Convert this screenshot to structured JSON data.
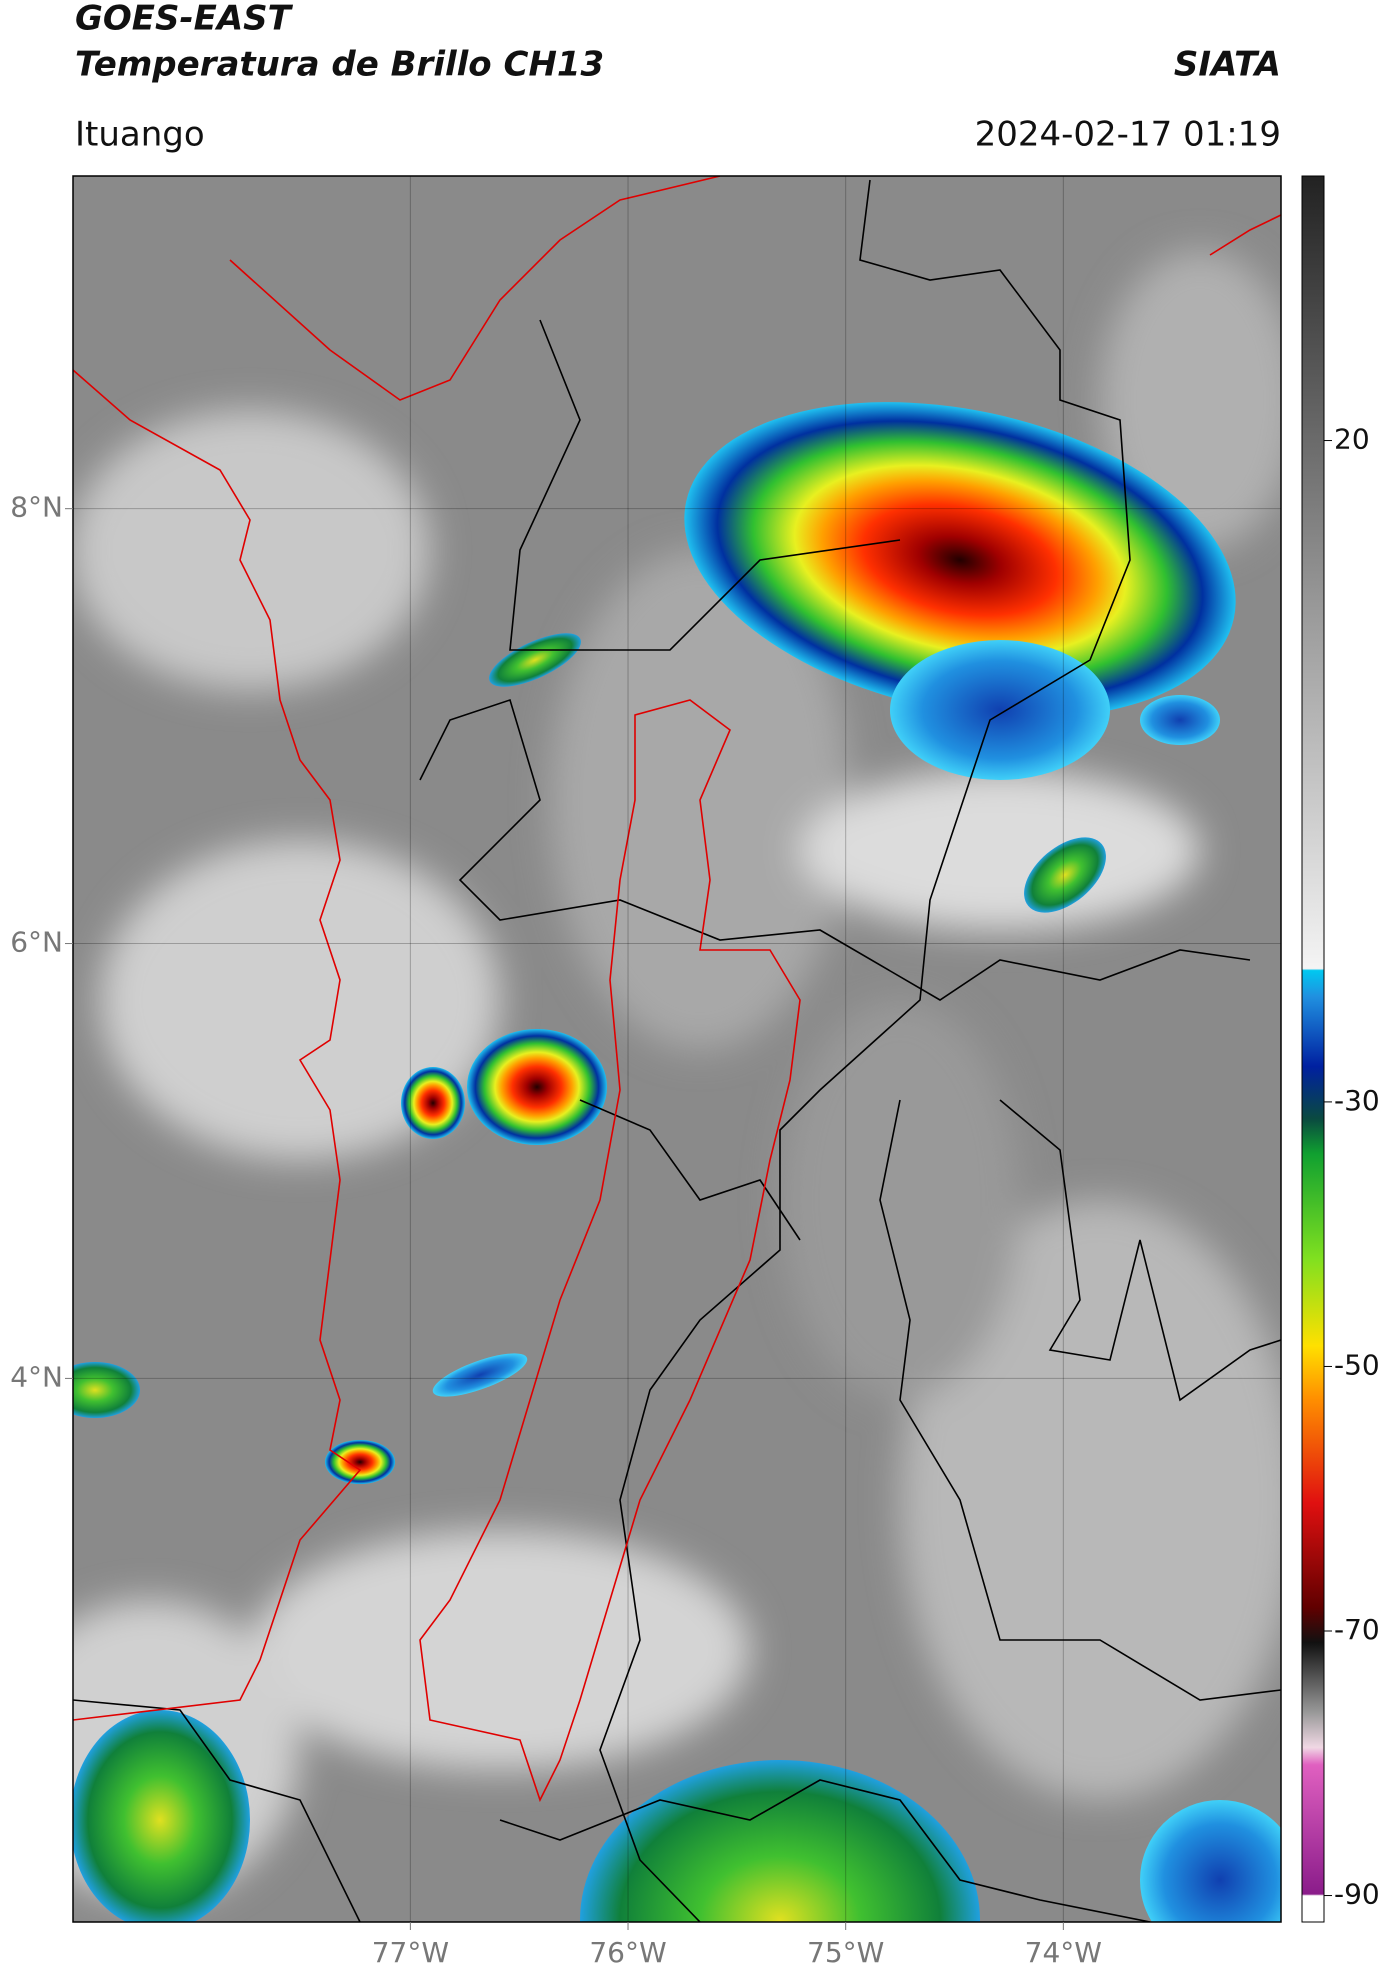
{
  "header": {
    "title": "GOES-EAST",
    "subtitle": "Temperatura de Brillo CH13",
    "source": "SIATA",
    "location": "Ituango",
    "timestamp": "2024-02-17 01:19"
  },
  "map": {
    "xlim": [
      -78.55,
      -73.0
    ],
    "ylim": [
      1.5,
      9.53
    ],
    "xticks": [
      {
        "value": -77,
        "label": "77°W"
      },
      {
        "value": -76,
        "label": "76°W"
      },
      {
        "value": -75,
        "label": "75°W"
      },
      {
        "value": -74,
        "label": "74°W"
      }
    ],
    "yticks": [
      {
        "value": 8,
        "label": "8°N"
      },
      {
        "value": 6,
        "label": "6°N"
      },
      {
        "value": 4,
        "label": "4°N"
      }
    ],
    "grid": true
  },
  "colorbar": {
    "clim": [
      -92,
      40
    ],
    "ticks": [
      20,
      -30,
      -50,
      -70,
      -90
    ]
  }
}
